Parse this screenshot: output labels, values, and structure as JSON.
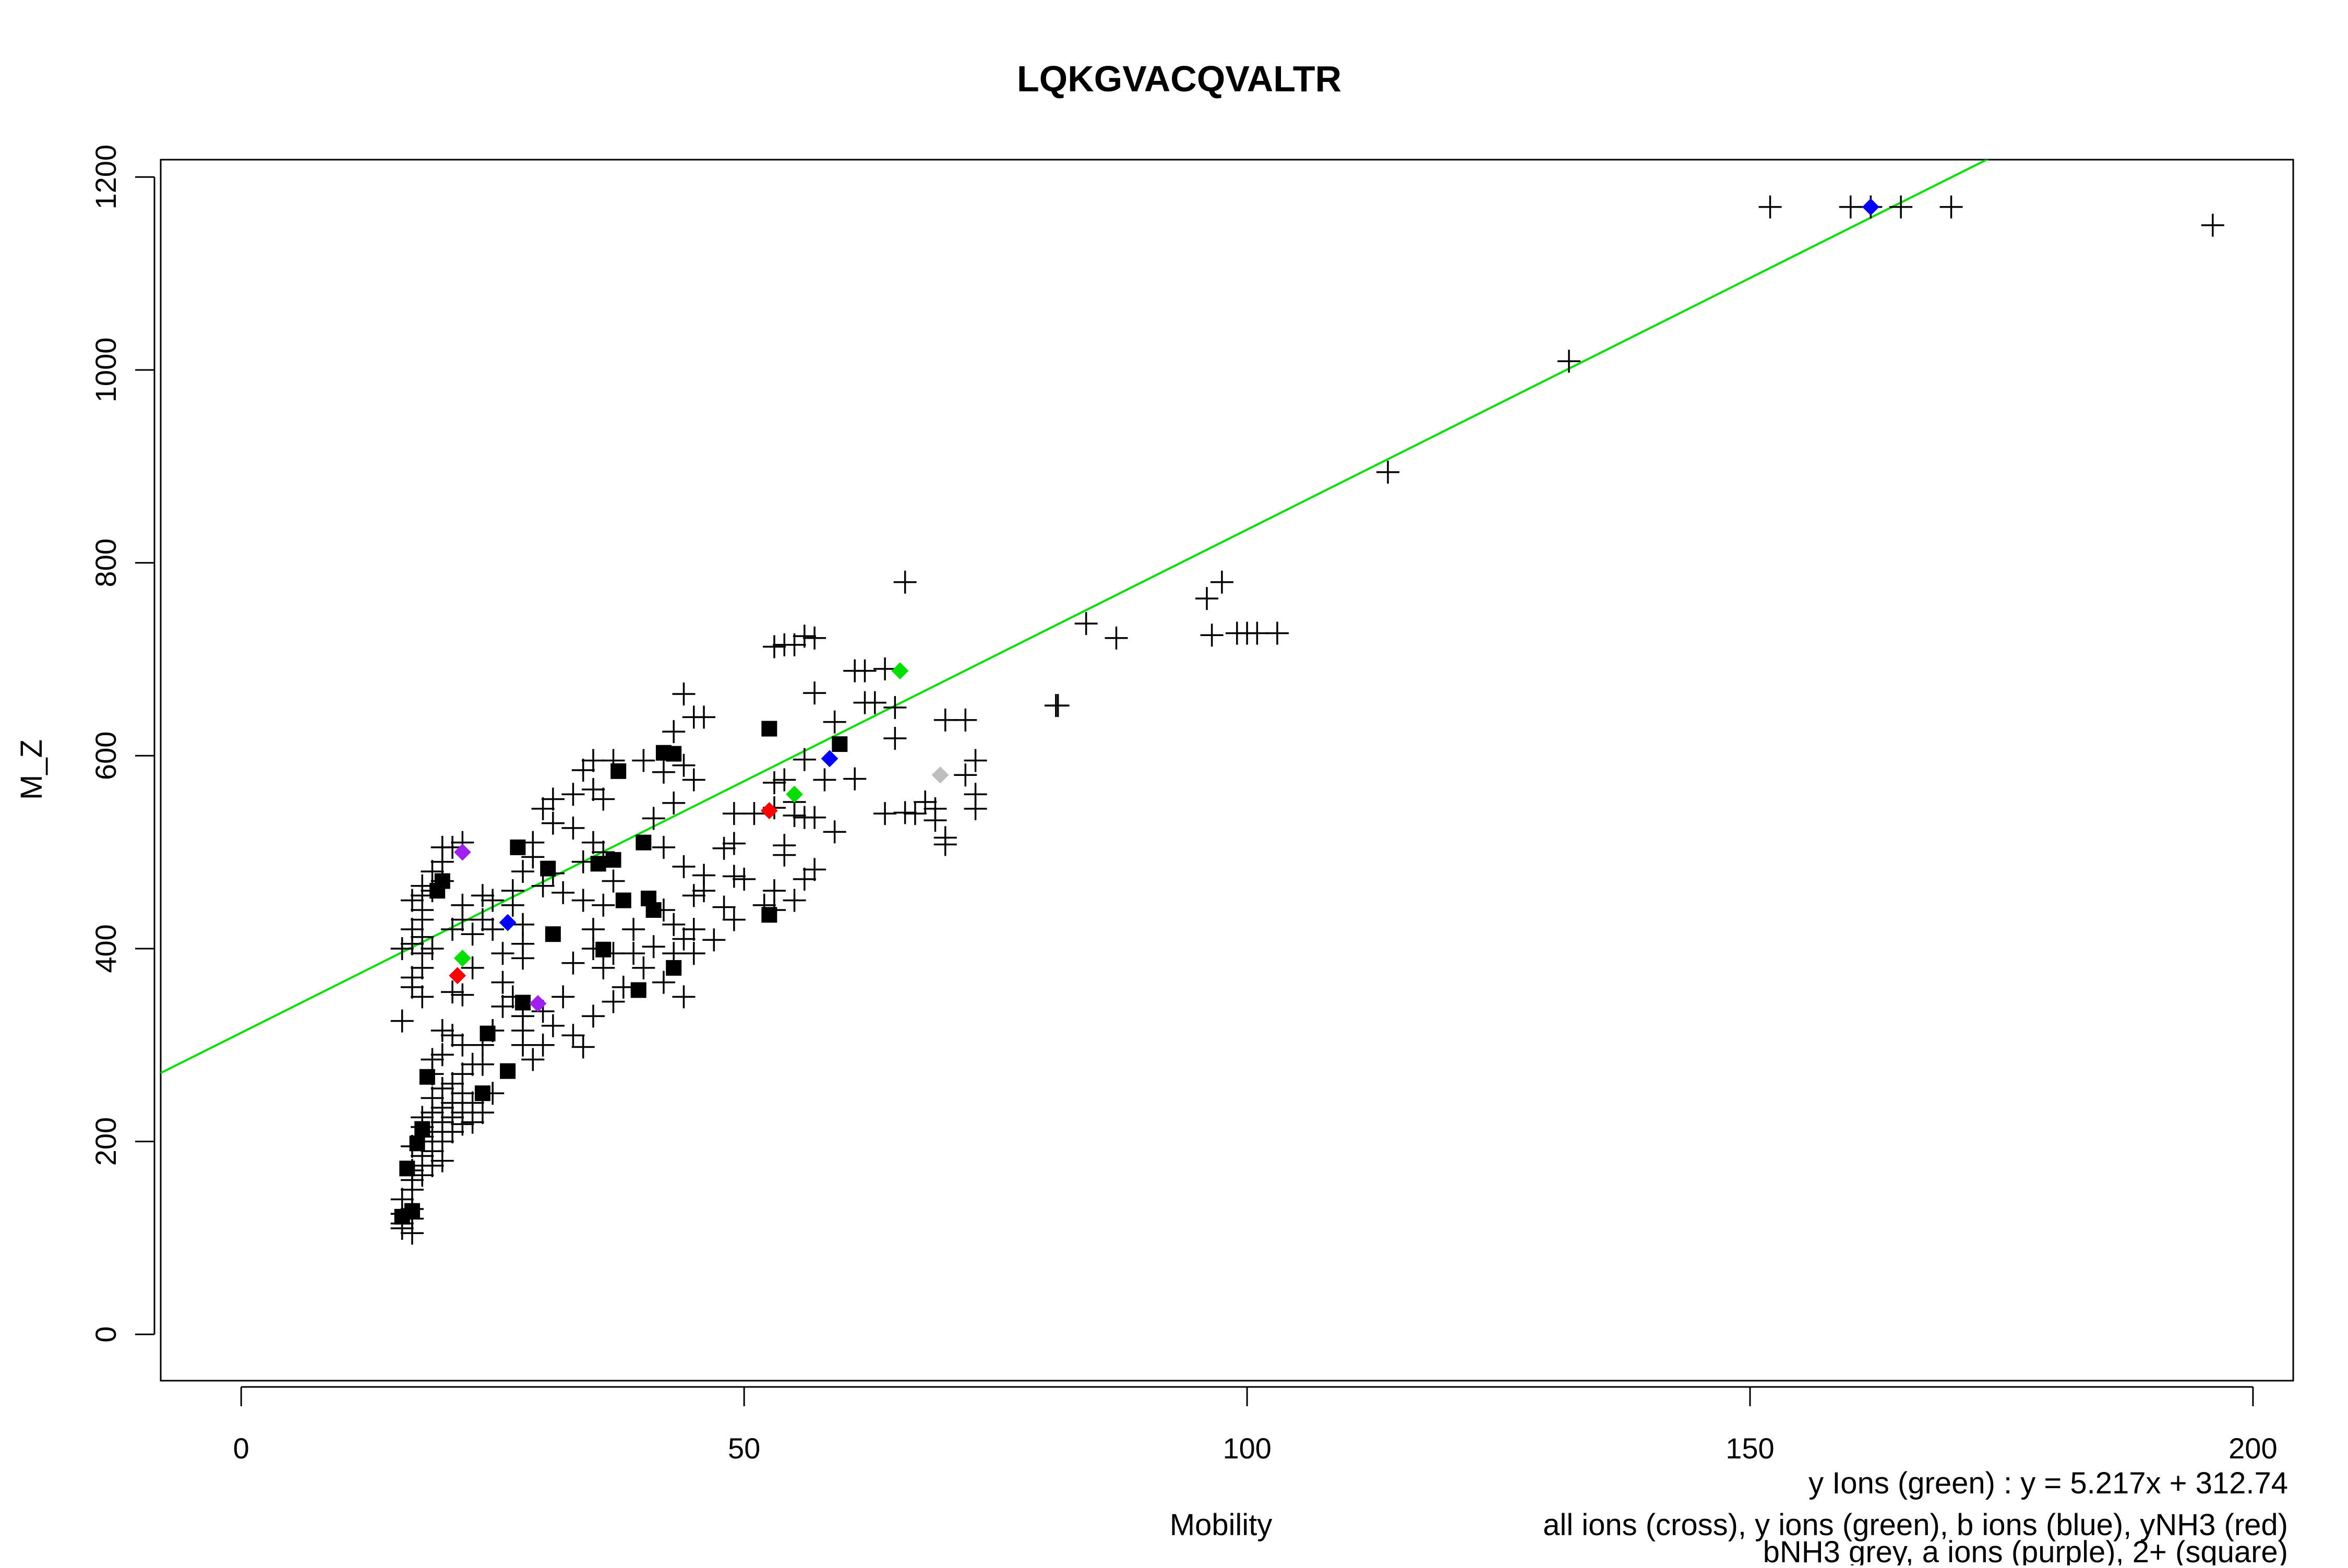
{
  "chart_data": {
    "type": "scatter",
    "title": "LQKGVACQVALTR",
    "xlabel": "Mobility",
    "ylabel": "M_Z",
    "xlim": [
      -8,
      204
    ],
    "ylim": [
      -48,
      1218
    ],
    "x_ticks": [
      0,
      50,
      100,
      150,
      200
    ],
    "y_ticks": [
      0,
      200,
      400,
      600,
      800,
      1000,
      1200
    ],
    "grid": false,
    "legend_placement": "bottom-right",
    "legend_lines": [
      "y Ions (green) : y = 5.217x + 312.74",
      "all ions (cross), y ions (green), b ions (blue), yNH3 (red)",
      "bNH3 grey, a ions (purple), 2+ (square)"
    ],
    "fit_line": {
      "slope": 5.217,
      "intercept": 312.74,
      "color": "#00e000"
    },
    "colors": {
      "cross": "#000000",
      "y_ions": "#00e000",
      "b_ions": "#0000ff",
      "yNH3": "#ff0000",
      "bNH3": "#bebebe",
      "a_ions": "#a020f0",
      "doubly_charged": "#000000"
    },
    "series": [
      {
        "name": "all ions (cross)",
        "marker": "cross",
        "points": [
          [
            160,
            1169
          ],
          [
            162,
            1169
          ],
          [
            152,
            1169
          ],
          [
            165,
            1169
          ],
          [
            170,
            1169
          ],
          [
            196,
            1150
          ],
          [
            132,
            1009
          ],
          [
            114,
            894
          ],
          [
            96,
            763
          ],
          [
            97.5,
            780
          ],
          [
            96.5,
            725
          ],
          [
            99,
            727
          ],
          [
            100,
            727
          ],
          [
            101,
            727
          ],
          [
            103,
            727
          ],
          [
            84,
            737
          ],
          [
            87,
            722
          ],
          [
            81,
            652
          ],
          [
            81.2,
            652
          ],
          [
            66,
            780
          ],
          [
            64,
            690
          ],
          [
            62,
            688
          ],
          [
            61,
            688
          ],
          [
            63,
            655
          ],
          [
            62,
            655
          ],
          [
            65,
            650
          ],
          [
            56,
            724
          ],
          [
            57,
            722
          ],
          [
            55,
            715
          ],
          [
            54,
            715
          ],
          [
            53,
            713
          ],
          [
            57,
            665
          ],
          [
            59,
            635
          ],
          [
            65,
            618
          ],
          [
            70,
            637
          ],
          [
            72,
            637
          ],
          [
            72,
            580
          ],
          [
            73,
            595
          ],
          [
            73,
            560
          ],
          [
            73,
            545
          ],
          [
            68,
            552
          ],
          [
            69,
            545
          ],
          [
            67,
            540
          ],
          [
            69,
            533
          ],
          [
            70,
            515
          ],
          [
            70,
            508
          ],
          [
            66,
            541
          ],
          [
            64,
            540
          ],
          [
            61,
            576
          ],
          [
            58,
            575
          ],
          [
            56,
            596
          ],
          [
            54,
            575
          ],
          [
            53,
            572
          ],
          [
            55,
            552
          ],
          [
            53,
            546
          ],
          [
            59,
            521
          ],
          [
            55,
            538
          ],
          [
            56,
            536
          ],
          [
            57,
            536
          ],
          [
            54,
            507
          ],
          [
            54,
            497
          ],
          [
            57,
            482
          ],
          [
            56,
            472
          ],
          [
            51,
            540
          ],
          [
            49,
            540
          ],
          [
            49,
            509
          ],
          [
            48,
            504
          ],
          [
            49,
            475
          ],
          [
            50,
            472
          ],
          [
            46,
            476
          ],
          [
            48,
            443
          ],
          [
            49,
            430
          ],
          [
            47,
            409
          ],
          [
            53,
            460
          ],
          [
            52,
            445
          ],
          [
            55,
            450
          ],
          [
            53,
            440
          ],
          [
            44,
            664
          ],
          [
            45,
            640
          ],
          [
            43,
            625
          ],
          [
            46,
            640
          ],
          [
            44,
            590
          ],
          [
            42,
            583
          ],
          [
            40,
            595
          ],
          [
            45,
            575
          ],
          [
            43,
            551
          ],
          [
            41,
            535
          ],
          [
            42,
            505
          ],
          [
            44,
            485
          ],
          [
            46,
            460
          ],
          [
            45,
            455
          ],
          [
            42,
            440
          ],
          [
            43,
            425
          ],
          [
            45,
            420
          ],
          [
            44,
            410
          ],
          [
            43,
            395
          ],
          [
            41,
            402
          ],
          [
            39,
            420
          ],
          [
            39,
            395
          ],
          [
            40,
            380
          ],
          [
            42,
            365
          ],
          [
            44,
            350
          ],
          [
            45,
            395
          ],
          [
            37,
            595
          ],
          [
            35,
            595
          ],
          [
            34,
            585
          ],
          [
            35,
            565
          ],
          [
            36,
            555
          ],
          [
            33,
            560
          ],
          [
            31,
            555
          ],
          [
            30,
            545
          ],
          [
            31,
            530
          ],
          [
            33,
            525
          ],
          [
            35,
            510
          ],
          [
            36,
            500
          ],
          [
            34,
            490
          ],
          [
            31,
            478
          ],
          [
            29,
            510
          ],
          [
            29,
            495
          ],
          [
            28,
            480
          ],
          [
            30,
            465
          ],
          [
            32,
            458
          ],
          [
            34,
            450
          ],
          [
            36,
            445
          ],
          [
            37,
            470
          ],
          [
            35,
            420
          ],
          [
            35,
            400
          ],
          [
            33,
            385
          ],
          [
            36,
            380
          ],
          [
            37,
            395
          ],
          [
            38,
            360
          ],
          [
            37,
            345
          ],
          [
            35,
            330
          ],
          [
            33,
            310
          ],
          [
            34,
            298
          ],
          [
            32,
            350
          ],
          [
            30,
            335
          ],
          [
            28,
            330
          ],
          [
            28,
            315
          ],
          [
            31,
            320
          ],
          [
            30,
            300
          ],
          [
            28,
            300
          ],
          [
            29,
            285
          ],
          [
            27,
            350
          ],
          [
            26,
            340
          ],
          [
            26,
            365
          ],
          [
            28,
            390
          ],
          [
            28,
            405
          ],
          [
            28,
            425
          ],
          [
            27,
            445
          ],
          [
            27,
            460
          ],
          [
            26,
            395
          ],
          [
            25,
            420
          ],
          [
            24,
            430
          ],
          [
            25,
            450
          ],
          [
            24,
            455
          ],
          [
            22,
            445
          ],
          [
            22,
            430
          ],
          [
            23,
            415
          ],
          [
            21,
            420
          ],
          [
            21,
            505
          ],
          [
            22,
            510
          ],
          [
            20,
            505
          ],
          [
            20,
            490
          ],
          [
            19,
            480
          ],
          [
            20,
            470
          ],
          [
            19,
            460
          ],
          [
            18,
            465
          ],
          [
            18,
            455
          ],
          [
            17,
            450
          ],
          [
            18,
            440
          ],
          [
            18,
            430
          ],
          [
            17,
            420
          ],
          [
            18,
            412
          ],
          [
            18,
            395
          ],
          [
            17,
            405
          ],
          [
            19,
            400
          ],
          [
            16,
            400
          ],
          [
            18,
            380
          ],
          [
            17,
            370
          ],
          [
            17,
            360
          ],
          [
            18,
            350
          ],
          [
            21,
            355
          ],
          [
            22,
            352
          ],
          [
            23,
            380
          ],
          [
            16,
            325
          ],
          [
            20,
            315
          ],
          [
            21,
            310
          ],
          [
            22,
            300
          ],
          [
            24,
            300
          ],
          [
            25,
            315
          ],
          [
            24,
            280
          ],
          [
            23,
            280
          ],
          [
            22,
            270
          ],
          [
            21,
            260
          ],
          [
            22,
            250
          ],
          [
            23,
            240
          ],
          [
            25,
            250
          ],
          [
            24,
            230
          ],
          [
            23,
            220
          ],
          [
            22,
            230
          ],
          [
            21,
            240
          ],
          [
            20,
            255
          ],
          [
            19,
            270
          ],
          [
            19,
            285
          ],
          [
            20,
            290
          ],
          [
            19,
            245
          ],
          [
            19,
            230
          ],
          [
            20,
            220
          ],
          [
            21,
            210
          ],
          [
            20,
            200
          ],
          [
            19,
            190
          ],
          [
            18,
            205
          ],
          [
            18,
            215
          ],
          [
            18,
            185
          ],
          [
            18,
            175
          ],
          [
            17,
            170
          ],
          [
            17,
            160
          ],
          [
            17,
            150
          ],
          [
            16,
            140
          ],
          [
            17,
            130
          ],
          [
            16,
            125
          ],
          [
            16,
            115
          ],
          [
            17,
            105
          ],
          [
            16,
            110
          ],
          [
            17,
            120
          ],
          [
            18,
            165
          ],
          [
            19,
            175
          ],
          [
            20,
            180
          ],
          [
            18,
            200
          ],
          [
            19,
            210
          ],
          [
            17,
            195
          ],
          [
            18,
            225
          ],
          [
            21,
            225
          ],
          [
            22,
            218
          ],
          [
            20,
            235
          ]
        ]
      },
      {
        "name": "2+ (square)",
        "marker": "square",
        "points": [
          [
            43,
            602
          ],
          [
            37.5,
            584
          ],
          [
            37,
            492
          ],
          [
            30.5,
            483
          ],
          [
            27.5,
            505
          ],
          [
            31,
            415
          ],
          [
            40,
            510
          ],
          [
            40.5,
            452
          ],
          [
            39.5,
            357
          ],
          [
            43,
            380
          ],
          [
            41,
            440
          ],
          [
            38,
            450
          ],
          [
            52.5,
            628
          ],
          [
            52.5,
            435
          ],
          [
            59.5,
            612
          ],
          [
            36,
            399
          ],
          [
            28,
            344
          ],
          [
            26.5,
            273
          ],
          [
            24.5,
            312
          ],
          [
            24,
            250
          ],
          [
            20,
            470
          ],
          [
            19.5,
            460
          ],
          [
            18.5,
            267
          ],
          [
            18,
            213
          ],
          [
            17.5,
            198
          ],
          [
            16.5,
            172
          ],
          [
            16,
            122
          ],
          [
            17,
            128
          ],
          [
            35.5,
            488
          ],
          [
            42,
            603
          ]
        ]
      },
      {
        "name": "y ions (green)",
        "marker": "diamond",
        "color": "#00e000",
        "points": [
          [
            65.5,
            688
          ],
          [
            55,
            560
          ],
          [
            22,
            390
          ]
        ]
      },
      {
        "name": "b ions (blue)",
        "marker": "diamond",
        "color": "#0000ff",
        "points": [
          [
            162,
            1169
          ],
          [
            58.5,
            597
          ],
          [
            26.5,
            427
          ]
        ]
      },
      {
        "name": "yNH3 (red)",
        "marker": "diamond",
        "color": "#ff0000",
        "points": [
          [
            52.5,
            543
          ],
          [
            21.5,
            372
          ]
        ]
      },
      {
        "name": "bNH3 grey",
        "marker": "diamond",
        "color": "#bebebe",
        "points": [
          [
            69.5,
            580
          ]
        ]
      },
      {
        "name": "a ions (purple)",
        "marker": "diamond",
        "color": "#a020f0",
        "points": [
          [
            22,
            500
          ],
          [
            29.5,
            343
          ]
        ]
      }
    ]
  }
}
